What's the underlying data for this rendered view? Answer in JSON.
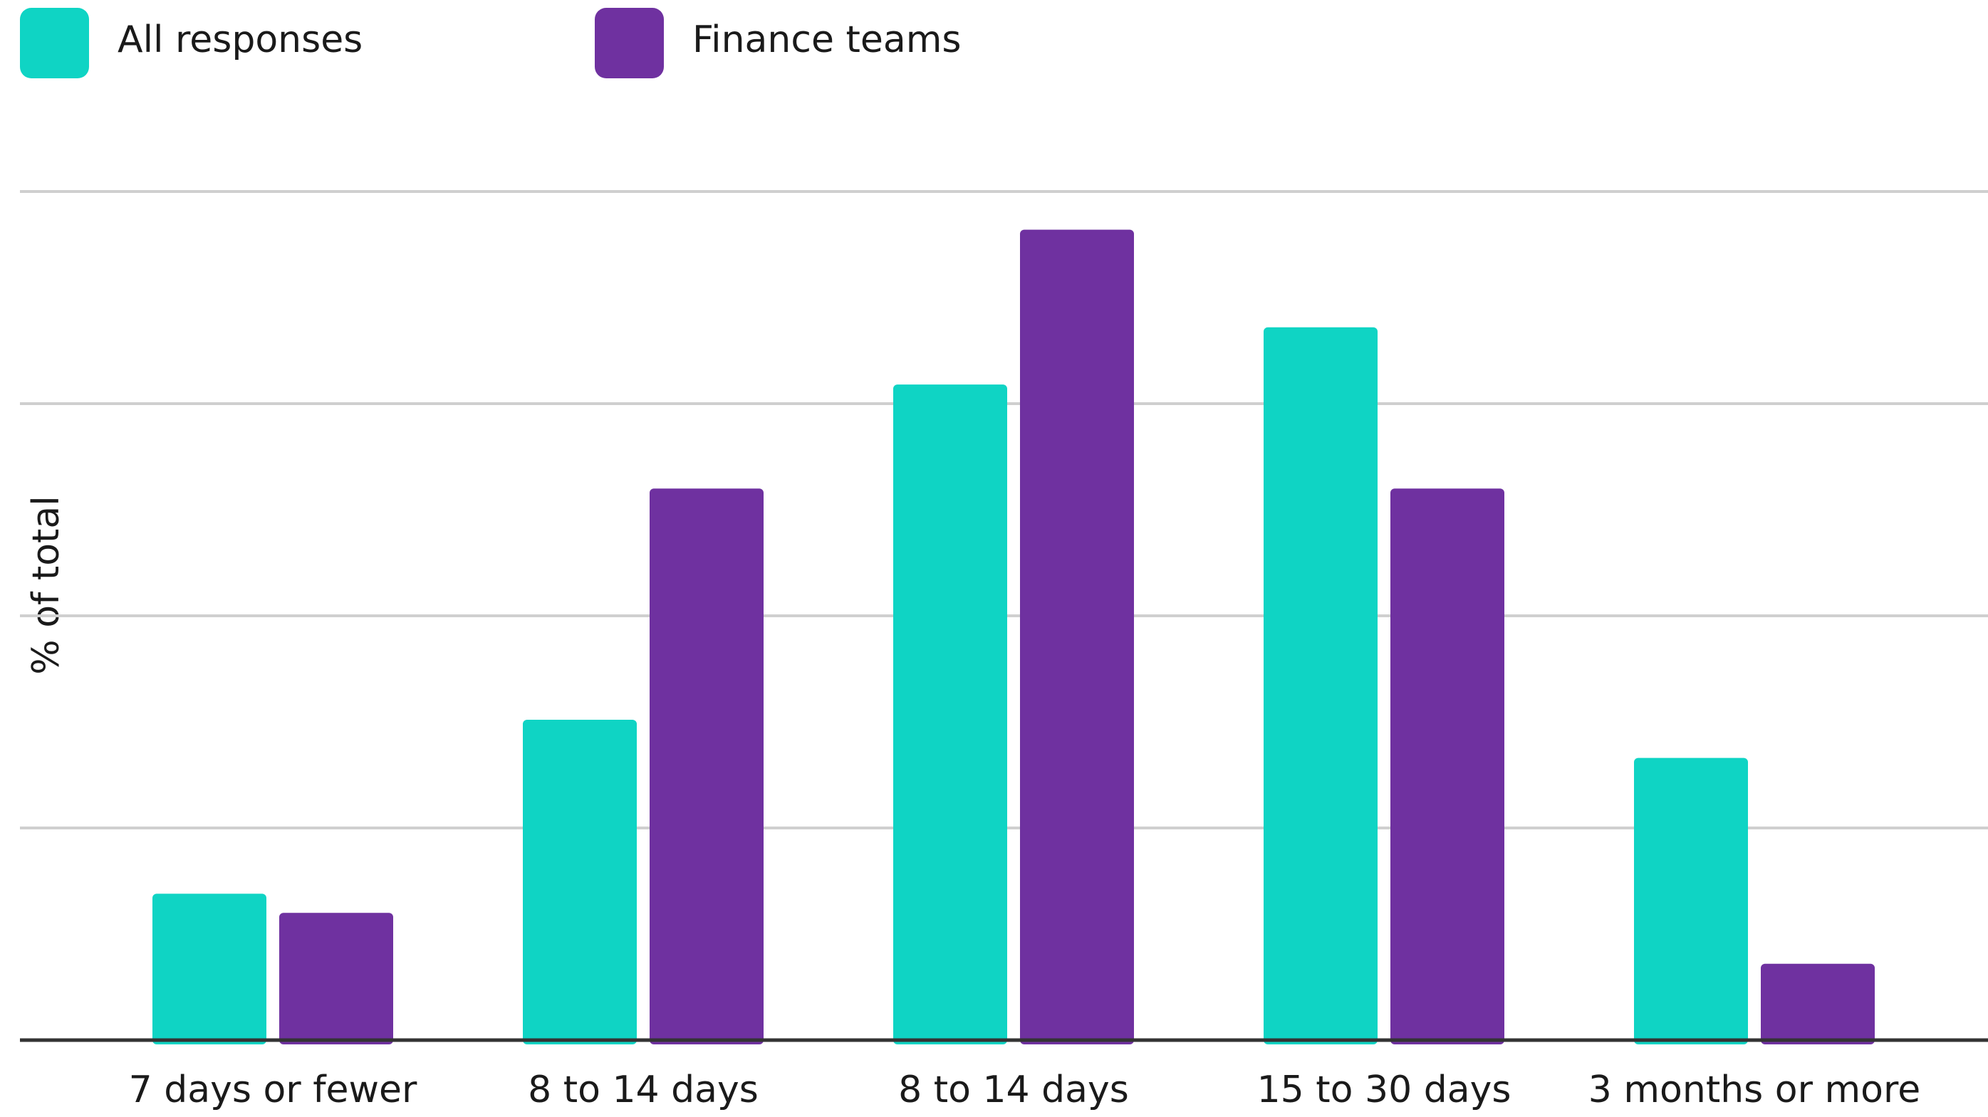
{
  "chart_data": {
    "type": "bar",
    "y_label": "% of total",
    "categories": [
      "7 days or fewer",
      "8 to 14 days",
      "8 to 14 days",
      "15 to 30 days",
      "3 months or more"
    ],
    "series": [
      {
        "name": "All responses",
        "color": "#0fd4c4",
        "values": [
          6.9,
          15.1,
          30.9,
          33.6,
          13.3
        ]
      },
      {
        "name": "Finance teams",
        "color": "#6f31a0",
        "values": [
          6.0,
          26.0,
          38.2,
          26.0,
          3.6
        ]
      }
    ],
    "ylim": [
      0,
      40
    ],
    "yticks": [
      0,
      10,
      20,
      30,
      40
    ],
    "grid": true
  }
}
